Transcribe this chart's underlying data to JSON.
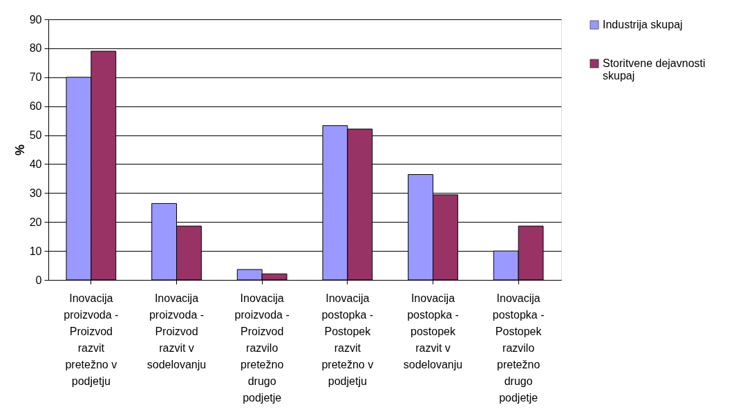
{
  "chart_data": {
    "type": "bar",
    "ylabel": "%",
    "categories": [
      "Inovacija proizvoda - Proizvod razvit pretežno v podjetju",
      "Inovacija proizvoda - Proizvod razvit v sodelovanju",
      "Inovacija proizvoda - Proizvod razvilo pretežno drugo podjetje",
      "Inovacija postopka - Postopek razvit pretežno v podjetju",
      "Inovacija postopka - postopek razvit v sodelovanju",
      "Inovacija postopka - Postopek razvilo pretežno drugo podjetje"
    ],
    "series": [
      {
        "name": "Industrija skupaj",
        "color": "#9999ff",
        "values": [
          70.0,
          26.4,
          3.6,
          53.3,
          36.4,
          10.0
        ]
      },
      {
        "name": "Storitvene dejavnosti skupaj",
        "color": "#993366",
        "values": [
          79.0,
          18.6,
          2.1,
          52.1,
          29.4,
          18.6
        ]
      }
    ],
    "ylim": [
      0,
      90
    ],
    "yticks": [
      0,
      10,
      20,
      30,
      40,
      50,
      60,
      70,
      80,
      90
    ],
    "grid": "y",
    "legend": "right"
  }
}
